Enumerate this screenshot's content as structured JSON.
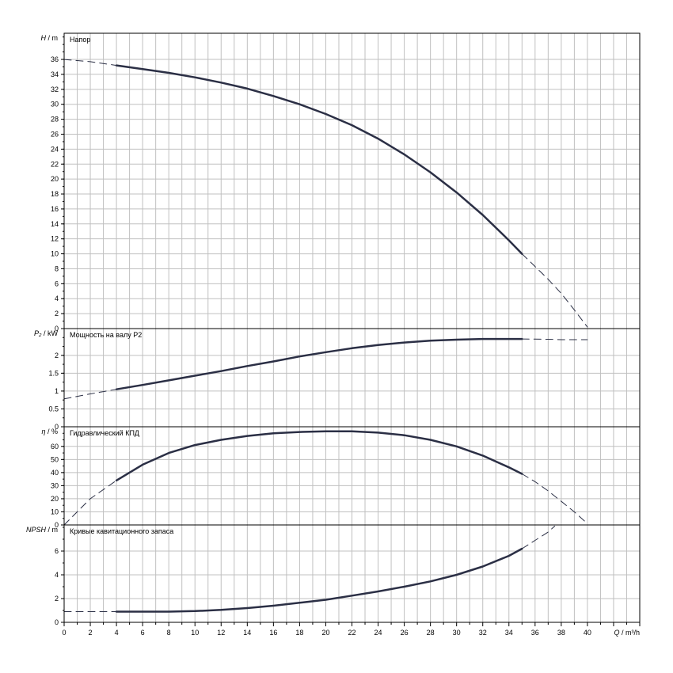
{
  "colors": {
    "curve": "#2b2f45",
    "grid": "#c0c0c0",
    "frame": "#000000",
    "background": "#ffffff"
  },
  "x_axis": {
    "label": "Q",
    "unit": "m³/h",
    "ticks": [
      0,
      2,
      4,
      6,
      8,
      10,
      12,
      14,
      16,
      18,
      20,
      22,
      24,
      26,
      28,
      30,
      32,
      34,
      36,
      38,
      40
    ],
    "min": 0,
    "max": 44
  },
  "chart_data": [
    {
      "type": "line",
      "title": "Напор",
      "ylabel": "H",
      "yunit": "m",
      "ylim": [
        0,
        39.5
      ],
      "yticks": [
        0,
        2,
        4,
        6,
        8,
        10,
        12,
        14,
        16,
        18,
        20,
        22,
        24,
        26,
        28,
        30,
        32,
        34,
        36
      ],
      "grid": true,
      "series": [
        {
          "style": "solid",
          "x": [
            4,
            6,
            8,
            10,
            12,
            14,
            16,
            18,
            20,
            22,
            24,
            26,
            28,
            30,
            32,
            34,
            35
          ],
          "y": [
            35.2,
            34.7,
            34.2,
            33.6,
            32.9,
            32.1,
            31.1,
            30.0,
            28.7,
            27.2,
            25.4,
            23.3,
            20.9,
            18.2,
            15.2,
            11.8,
            10.0
          ]
        },
        {
          "style": "dashed",
          "x": [
            0,
            2,
            4
          ],
          "y": [
            36.0,
            35.7,
            35.2
          ]
        },
        {
          "style": "dashed",
          "x": [
            35,
            36,
            37,
            38,
            39,
            40
          ],
          "y": [
            10.0,
            8.3,
            6.6,
            4.7,
            2.5,
            0.2
          ]
        }
      ]
    },
    {
      "type": "line",
      "title": "Мощность на валу P2",
      "ylabel": "P₂",
      "yunit": "kW",
      "ylim": [
        0,
        2.75
      ],
      "yticks": [
        0,
        0.5,
        1,
        1.5,
        2
      ],
      "ytick_labels": [
        "0",
        "0.5",
        "1",
        "1.5",
        "2"
      ],
      "grid": true,
      "series": [
        {
          "style": "solid",
          "x": [
            4,
            6,
            8,
            10,
            12,
            14,
            16,
            18,
            20,
            22,
            24,
            26,
            28,
            30,
            32,
            34,
            35
          ],
          "y": [
            1.05,
            1.17,
            1.3,
            1.43,
            1.56,
            1.7,
            1.83,
            1.97,
            2.09,
            2.2,
            2.29,
            2.36,
            2.41,
            2.44,
            2.46,
            2.46,
            2.46
          ]
        },
        {
          "style": "dashed",
          "x": [
            0,
            2,
            4
          ],
          "y": [
            0.78,
            0.92,
            1.05
          ]
        },
        {
          "style": "dashed",
          "x": [
            35,
            37,
            38,
            40
          ],
          "y": [
            2.46,
            2.45,
            2.44,
            2.44
          ]
        }
      ]
    },
    {
      "type": "line",
      "title": "Гидравлический КПД",
      "ylabel": "η",
      "yunit": "%",
      "ylim": [
        0,
        75
      ],
      "yticks": [
        0,
        10,
        20,
        30,
        40,
        50,
        60
      ],
      "grid": true,
      "series": [
        {
          "style": "solid",
          "x": [
            4,
            6,
            8,
            10,
            12,
            14,
            16,
            18,
            20,
            22,
            24,
            26,
            28,
            30,
            32,
            34,
            35
          ],
          "y": [
            34,
            46,
            55,
            61,
            65,
            68,
            70,
            71,
            71.5,
            71.5,
            70.5,
            68.5,
            65,
            60,
            53,
            44,
            39
          ]
        },
        {
          "style": "dashed",
          "x": [
            0,
            2,
            4
          ],
          "y": [
            0,
            20,
            34
          ]
        },
        {
          "style": "dashed",
          "x": [
            35,
            36,
            37,
            38,
            39,
            40
          ],
          "y": [
            39,
            33,
            26,
            18,
            10,
            1
          ]
        }
      ]
    },
    {
      "type": "line",
      "title": "Кривые кавитационного запаса",
      "ylabel": "NPSH",
      "yunit": "m",
      "ylim": [
        0,
        8.2
      ],
      "yticks": [
        0,
        2,
        4,
        6
      ],
      "grid": true,
      "series": [
        {
          "style": "solid",
          "x": [
            4,
            6,
            8,
            10,
            12,
            14,
            16,
            18,
            20,
            22,
            24,
            26,
            28,
            30,
            32,
            34,
            35
          ],
          "y": [
            0.9,
            0.9,
            0.9,
            0.95,
            1.05,
            1.2,
            1.4,
            1.65,
            1.9,
            2.25,
            2.6,
            3.0,
            3.45,
            4.0,
            4.7,
            5.6,
            6.2
          ]
        },
        {
          "style": "dashed",
          "x": [
            0,
            2,
            4
          ],
          "y": [
            0.9,
            0.9,
            0.9
          ]
        },
        {
          "style": "dashed",
          "x": [
            35,
            36,
            37,
            37.5
          ],
          "y": [
            6.2,
            6.9,
            7.6,
            8.1
          ]
        }
      ]
    }
  ]
}
